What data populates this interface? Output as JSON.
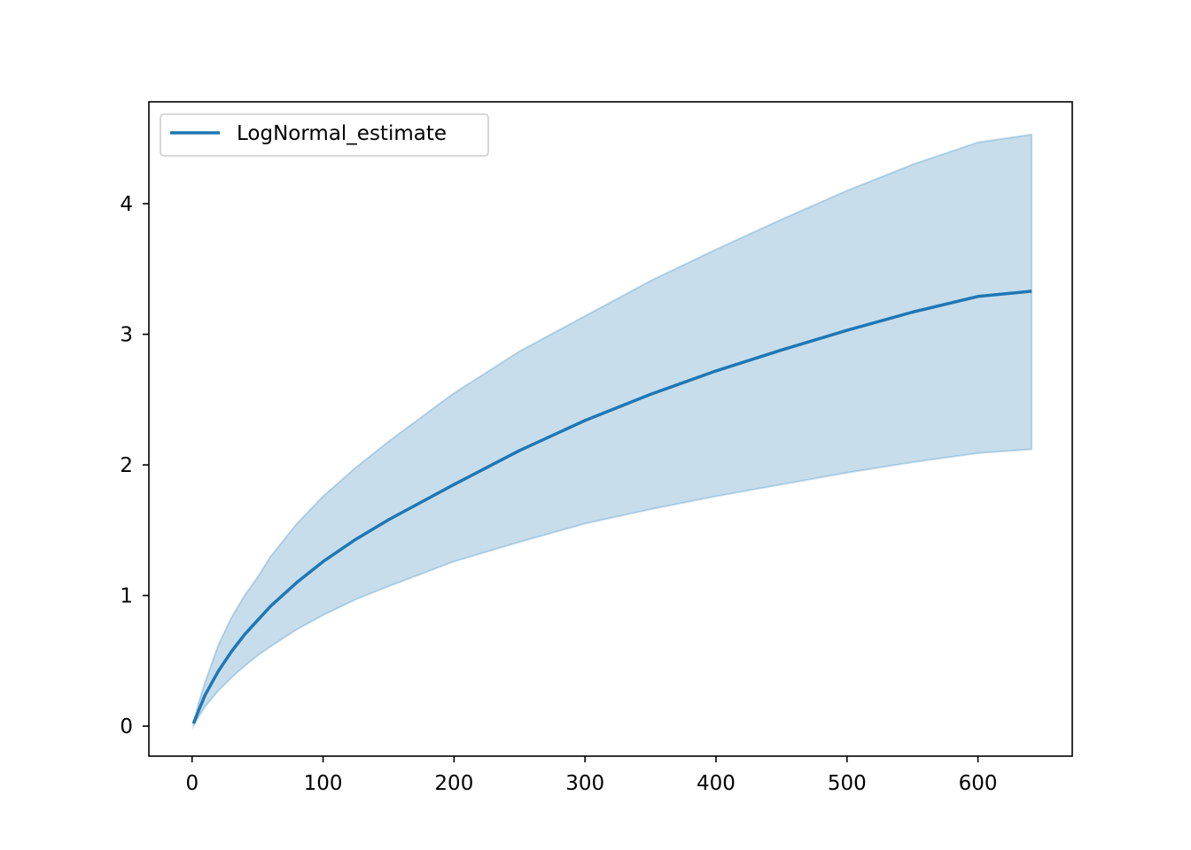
{
  "chart_data": {
    "type": "line",
    "title": "",
    "xlabel": "",
    "ylabel": "",
    "xlim": [
      -33,
      672
    ],
    "ylim": [
      -0.23,
      4.78
    ],
    "x_ticks": [
      0,
      100,
      200,
      300,
      400,
      500,
      600
    ],
    "y_ticks": [
      0,
      1,
      2,
      3,
      4
    ],
    "grid": false,
    "legend": {
      "placement": "top-left",
      "entries": [
        "LogNormal_estimate"
      ]
    },
    "colors": {
      "line": "#1f77b4",
      "band": "#1f77b4"
    },
    "series": [
      {
        "name": "LogNormal_estimate",
        "x": [
          1,
          5,
          10,
          20,
          30,
          40,
          50,
          60,
          80,
          100,
          125,
          150,
          200,
          250,
          300,
          350,
          400,
          450,
          500,
          550,
          600,
          641
        ],
        "y": [
          0.02,
          0.12,
          0.24,
          0.42,
          0.57,
          0.7,
          0.81,
          0.92,
          1.1,
          1.26,
          1.43,
          1.58,
          1.85,
          2.11,
          2.34,
          2.54,
          2.72,
          2.88,
          3.03,
          3.17,
          3.29,
          3.33
        ],
        "lower": [
          0.0,
          0.07,
          0.15,
          0.27,
          0.37,
          0.46,
          0.54,
          0.61,
          0.74,
          0.85,
          0.97,
          1.07,
          1.26,
          1.41,
          1.55,
          1.66,
          1.76,
          1.85,
          1.94,
          2.02,
          2.09,
          2.12
        ],
        "upper": [
          0.02,
          0.18,
          0.34,
          0.62,
          0.83,
          1.0,
          1.14,
          1.3,
          1.55,
          1.76,
          1.98,
          2.18,
          2.55,
          2.87,
          3.14,
          3.41,
          3.65,
          3.88,
          4.1,
          4.3,
          4.47,
          4.53
        ]
      }
    ]
  }
}
